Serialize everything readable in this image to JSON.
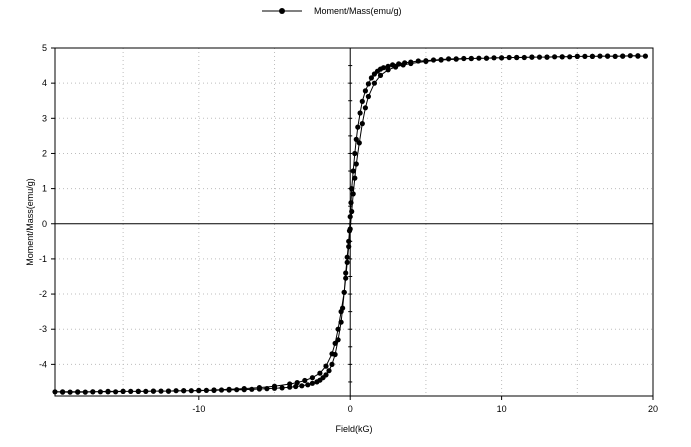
{
  "chart_data": {
    "type": "scatter",
    "xlabel": "Field(kG)",
    "ylabel": "Moment/Mass(emu/g)",
    "xlim": [
      -19.5,
      20
    ],
    "ylim": [
      -4.9,
      5
    ],
    "x_ticks": [
      -10,
      0,
      10,
      20
    ],
    "y_ticks": [
      -4,
      -3,
      -2,
      -1,
      0,
      1,
      2,
      3,
      4,
      5
    ],
    "grid": "dotted",
    "legend_position": "top-center",
    "marker": "filled-circle",
    "line_color": "#000000",
    "series": [
      {
        "name": "Moment/Mass(emu/g)",
        "x": [
          19.5,
          19.0,
          18.5,
          18.0,
          17.5,
          17.0,
          16.5,
          16.0,
          15.5,
          15.0,
          14.5,
          14.0,
          13.5,
          13.0,
          12.5,
          12.0,
          11.5,
          11.0,
          10.5,
          10.0,
          9.5,
          9.0,
          8.5,
          8.0,
          7.5,
          7.0,
          6.5,
          6.0,
          5.5,
          5.0,
          4.5,
          4.0,
          3.6,
          3.2,
          2.8,
          2.5,
          2.2,
          2.0,
          1.8,
          1.6,
          1.4,
          1.2,
          1.0,
          0.8,
          0.65,
          0.5,
          0.4,
          0.3,
          0.2,
          0.1,
          0.05,
          0.0,
          -0.05,
          -0.1,
          -0.2,
          -0.3,
          -0.4,
          -0.5,
          -0.6,
          -0.8,
          -1.0,
          -1.2,
          -1.4,
          -1.6,
          -1.8,
          -2.0,
          -2.2,
          -2.5,
          -2.8,
          -3.2,
          -3.6,
          -4.0,
          -4.5,
          -5.0,
          -5.5,
          -6.0,
          -6.5,
          -7.0,
          -7.5,
          -8.0,
          -8.5,
          -9.0,
          -9.5,
          -10.0,
          -10.5,
          -11.0,
          -11.5,
          -12.0,
          -12.5,
          -13.0,
          -13.5,
          -14.0,
          -14.5,
          -15.0,
          -15.5,
          -16.0,
          -16.5,
          -17.0,
          -17.5,
          -18.0,
          -18.5,
          -19.0,
          -19.5,
          -19.0,
          -18.0,
          -17.0,
          -16.0,
          -15.0,
          -14.0,
          -13.0,
          -12.0,
          -11.0,
          -10.0,
          -9.0,
          -8.0,
          -7.0,
          -6.0,
          -5.0,
          -4.0,
          -3.5,
          -3.0,
          -2.5,
          -2.0,
          -1.6,
          -1.2,
          -1.0,
          -0.8,
          -0.6,
          -0.4,
          -0.3,
          -0.2,
          -0.1,
          0.0,
          0.1,
          0.2,
          0.3,
          0.4,
          0.6,
          0.8,
          1.0,
          1.2,
          1.6,
          2.0,
          2.5,
          3.0,
          3.5,
          4.0,
          5.0,
          6.0,
          7.0,
          8.0,
          9.0,
          10.0,
          11.0,
          12.0,
          13.0,
          14.0,
          15.0,
          16.0,
          17.0,
          18.0,
          19.0
        ],
        "y": [
          4.77,
          4.77,
          4.78,
          4.77,
          4.76,
          4.77,
          4.77,
          4.76,
          4.76,
          4.76,
          4.75,
          4.75,
          4.75,
          4.74,
          4.74,
          4.74,
          4.73,
          4.73,
          4.73,
          4.72,
          4.72,
          4.71,
          4.71,
          4.7,
          4.7,
          4.69,
          4.69,
          4.67,
          4.66,
          4.64,
          4.63,
          4.6,
          4.58,
          4.55,
          4.52,
          4.48,
          4.44,
          4.4,
          4.34,
          4.26,
          4.15,
          3.98,
          3.78,
          3.48,
          3.15,
          2.75,
          2.4,
          2.0,
          1.5,
          1.0,
          0.6,
          0.2,
          -0.2,
          -0.5,
          -0.95,
          -1.4,
          -1.95,
          -2.4,
          -2.8,
          -3.3,
          -3.72,
          -4.0,
          -4.18,
          -4.3,
          -4.38,
          -4.45,
          -4.5,
          -4.54,
          -4.58,
          -4.61,
          -4.63,
          -4.65,
          -4.67,
          -4.68,
          -4.69,
          -4.7,
          -4.71,
          -4.72,
          -4.72,
          -4.73,
          -4.73,
          -4.74,
          -4.74,
          -4.74,
          -4.75,
          -4.75,
          -4.75,
          -4.76,
          -4.76,
          -4.76,
          -4.77,
          -4.77,
          -4.77,
          -4.77,
          -4.78,
          -4.78,
          -4.78,
          -4.78,
          -4.79,
          -4.79,
          -4.79,
          -4.79,
          -4.78,
          -4.78,
          -4.78,
          -4.78,
          -4.77,
          -4.77,
          -4.77,
          -4.76,
          -4.76,
          -4.75,
          -4.75,
          -4.73,
          -4.71,
          -4.69,
          -4.66,
          -4.62,
          -4.56,
          -4.52,
          -4.46,
          -4.38,
          -4.25,
          -4.05,
          -3.7,
          -3.4,
          -3.0,
          -2.5,
          -1.95,
          -1.55,
          -1.1,
          -0.65,
          -0.15,
          0.35,
          0.85,
          1.3,
          1.7,
          2.3,
          2.85,
          3.3,
          3.62,
          4.0,
          4.22,
          4.38,
          4.46,
          4.52,
          4.56,
          4.62,
          4.66,
          4.68,
          4.7,
          4.71,
          4.72,
          4.73,
          4.74,
          4.74,
          4.75,
          4.76,
          4.76,
          4.77,
          4.77,
          4.78
        ]
      }
    ]
  }
}
